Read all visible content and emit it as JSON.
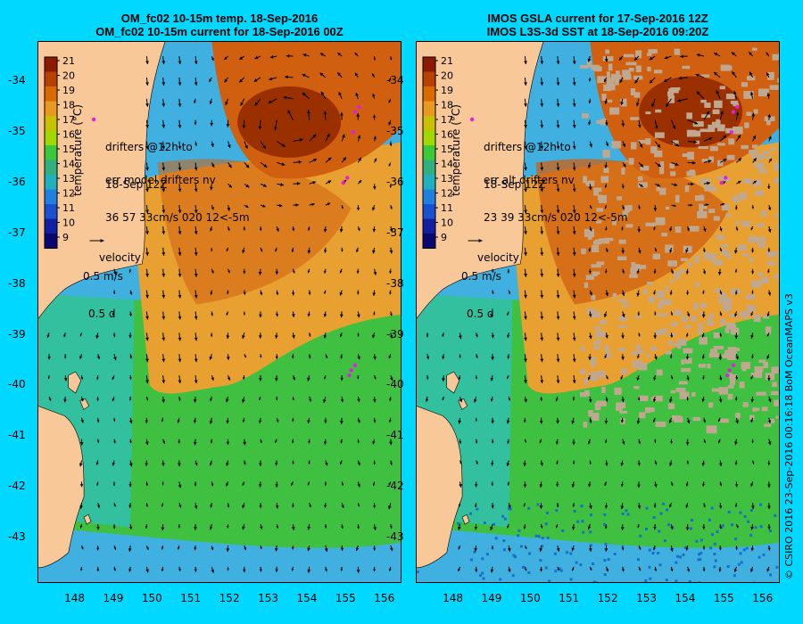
{
  "panels": [
    {
      "id": "model",
      "title_line1": "OM_fc02 10-15m temp. 18-Sep-2016",
      "title_line2": "OM_fc02 10-15m current for 18-Sep-2016 00Z",
      "drifters_line1": "drifters @12h to",
      "drifters_line2": "18-Sep 12Z",
      "err_line1": "err model drifters nv",
      "err_line2": "36 57 33cm/s 020 12<-5m",
      "velocity_label": "velocity",
      "velocity_scale": "0.5 m/s",
      "velocity_time": "0.5 d",
      "eddy": {
        "lon": 153.6,
        "lat": -34.8
      }
    },
    {
      "id": "obs",
      "title_line1": "IMOS GSLA current for 17-Sep-2016 12Z",
      "title_line2": "IMOS L3S-3d SST at 18-Sep-2016 09:20Z",
      "drifters_line1": "drifters @12h to",
      "drifters_line2": "18-Sep 12Z",
      "err_line1": "err alt drifters nv",
      "err_line2": "23 39 33cm/s 020 12<-5m",
      "velocity_label": "velocity",
      "velocity_scale": "0.5 m/s",
      "velocity_time": "0.5 d",
      "eddy": {
        "lon": 154.2,
        "lat": -34.6
      }
    }
  ],
  "colorbar": {
    "label": "temperature (°C)",
    "ticks": [
      "21",
      "20",
      "19",
      "18",
      "17",
      "16",
      "15",
      "14",
      "13",
      "12",
      "11",
      "10",
      "9"
    ],
    "colors": [
      "#8b1a00",
      "#b84000",
      "#d96a00",
      "#e89a20",
      "#c8c000",
      "#a0d800",
      "#3cc83c",
      "#30b080",
      "#20b0c0",
      "#2080e0",
      "#1850d0",
      "#1020a0",
      "#0a0870"
    ]
  },
  "axes": {
    "lon_ticks": [
      "148",
      "149",
      "150",
      "151",
      "152",
      "153",
      "154",
      "155",
      "156"
    ],
    "lat_ticks": [
      "-34",
      "-35",
      "-36",
      "-37",
      "-38",
      "-39",
      "-40",
      "-41",
      "-42",
      "-43"
    ],
    "lon_min": 147.1,
    "lon_max": 156.5,
    "lat_min": -43.9,
    "lat_max": -33.2
  },
  "credit": "© CSIRO 2016   23-Sep-2016 00:16:18 BoM OceanMAPS v3",
  "colors": {
    "background": "#00d8ff",
    "land": "#f8c898",
    "warm_core": "#9a3000",
    "warm": "#d06010",
    "mid": "#e8a030",
    "green": "#40c040",
    "cool": "#30c0b0",
    "cold": "#40b0e0",
    "cloud": "#c0a890",
    "drifter": "#e020e0"
  }
}
